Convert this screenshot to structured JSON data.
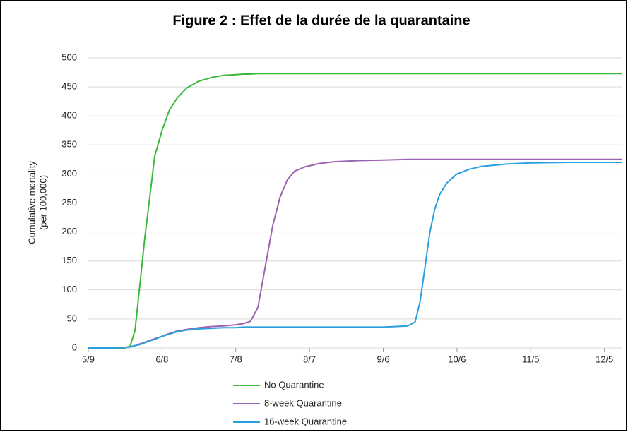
{
  "chart_data": {
    "type": "line",
    "title": "Figure 2 : Effet de la durée de la quarantaine",
    "ylabel": [
      "Cumulative mortality",
      "(per 100,000)"
    ],
    "x": [
      "5/9",
      "5/19",
      "5/24",
      "5/26",
      "5/28",
      "5/30",
      "6/1",
      "6/3",
      "6/5",
      "6/8",
      "6/11",
      "6/14",
      "6/18",
      "6/23",
      "6/28",
      "7/3",
      "7/8",
      "7/11",
      "7/14",
      "7/17",
      "7/20",
      "7/23",
      "7/26",
      "7/29",
      "8/1",
      "8/5",
      "8/11",
      "8/17",
      "8/27",
      "9/6",
      "9/16",
      "9/19",
      "9/21",
      "9/23",
      "9/25",
      "9/27",
      "9/29",
      "10/2",
      "10/6",
      "10/11",
      "10/16",
      "10/26",
      "11/5",
      "11/20",
      "12/5",
      "12/12"
    ],
    "series": [
      {
        "name": "No Quarantine",
        "color": "#3cb83c",
        "values": [
          0,
          0,
          0,
          3,
          30,
          110,
          190,
          260,
          330,
          375,
          410,
          430,
          448,
          460,
          466,
          470,
          471,
          472,
          472,
          473,
          473,
          473,
          473,
          473,
          473,
          473,
          473,
          473,
          473,
          473,
          473,
          473,
          473,
          473,
          473,
          473,
          473,
          473,
          473,
          473,
          473,
          473,
          473,
          473,
          473,
          473
        ]
      },
      {
        "name": "8-week Quarantine",
        "color": "#9a62b0",
        "values": [
          0,
          0,
          1,
          2,
          4,
          7,
          10,
          13,
          16,
          20,
          25,
          29,
          32,
          35,
          37,
          38,
          40,
          42,
          46,
          70,
          140,
          210,
          260,
          290,
          305,
          312,
          318,
          321,
          323,
          324,
          325,
          325,
          325,
          325,
          325,
          325,
          325,
          325,
          325,
          325,
          325,
          325,
          325,
          325,
          325,
          325
        ]
      },
      {
        "name": "16-week Quarantine",
        "color": "#2a9fe0",
        "values": [
          0,
          0,
          1,
          2,
          4,
          6,
          9,
          12,
          15,
          20,
          24,
          28,
          31,
          33,
          34,
          35,
          35,
          36,
          36,
          36,
          36,
          36,
          36,
          36,
          36,
          36,
          36,
          36,
          36,
          36,
          38,
          45,
          80,
          140,
          200,
          240,
          265,
          285,
          300,
          308,
          313,
          317,
          319,
          320,
          320,
          320
        ]
      }
    ],
    "xlim": [
      "5/9",
      "12/12"
    ],
    "xticks": [
      "5/9",
      "6/8",
      "7/8",
      "8/7",
      "9/6",
      "10/6",
      "11/5",
      "12/5"
    ],
    "ylim": [
      0,
      500
    ],
    "yticks": [
      0,
      50,
      100,
      150,
      200,
      250,
      300,
      350,
      400,
      450,
      500
    ],
    "grid": true
  }
}
